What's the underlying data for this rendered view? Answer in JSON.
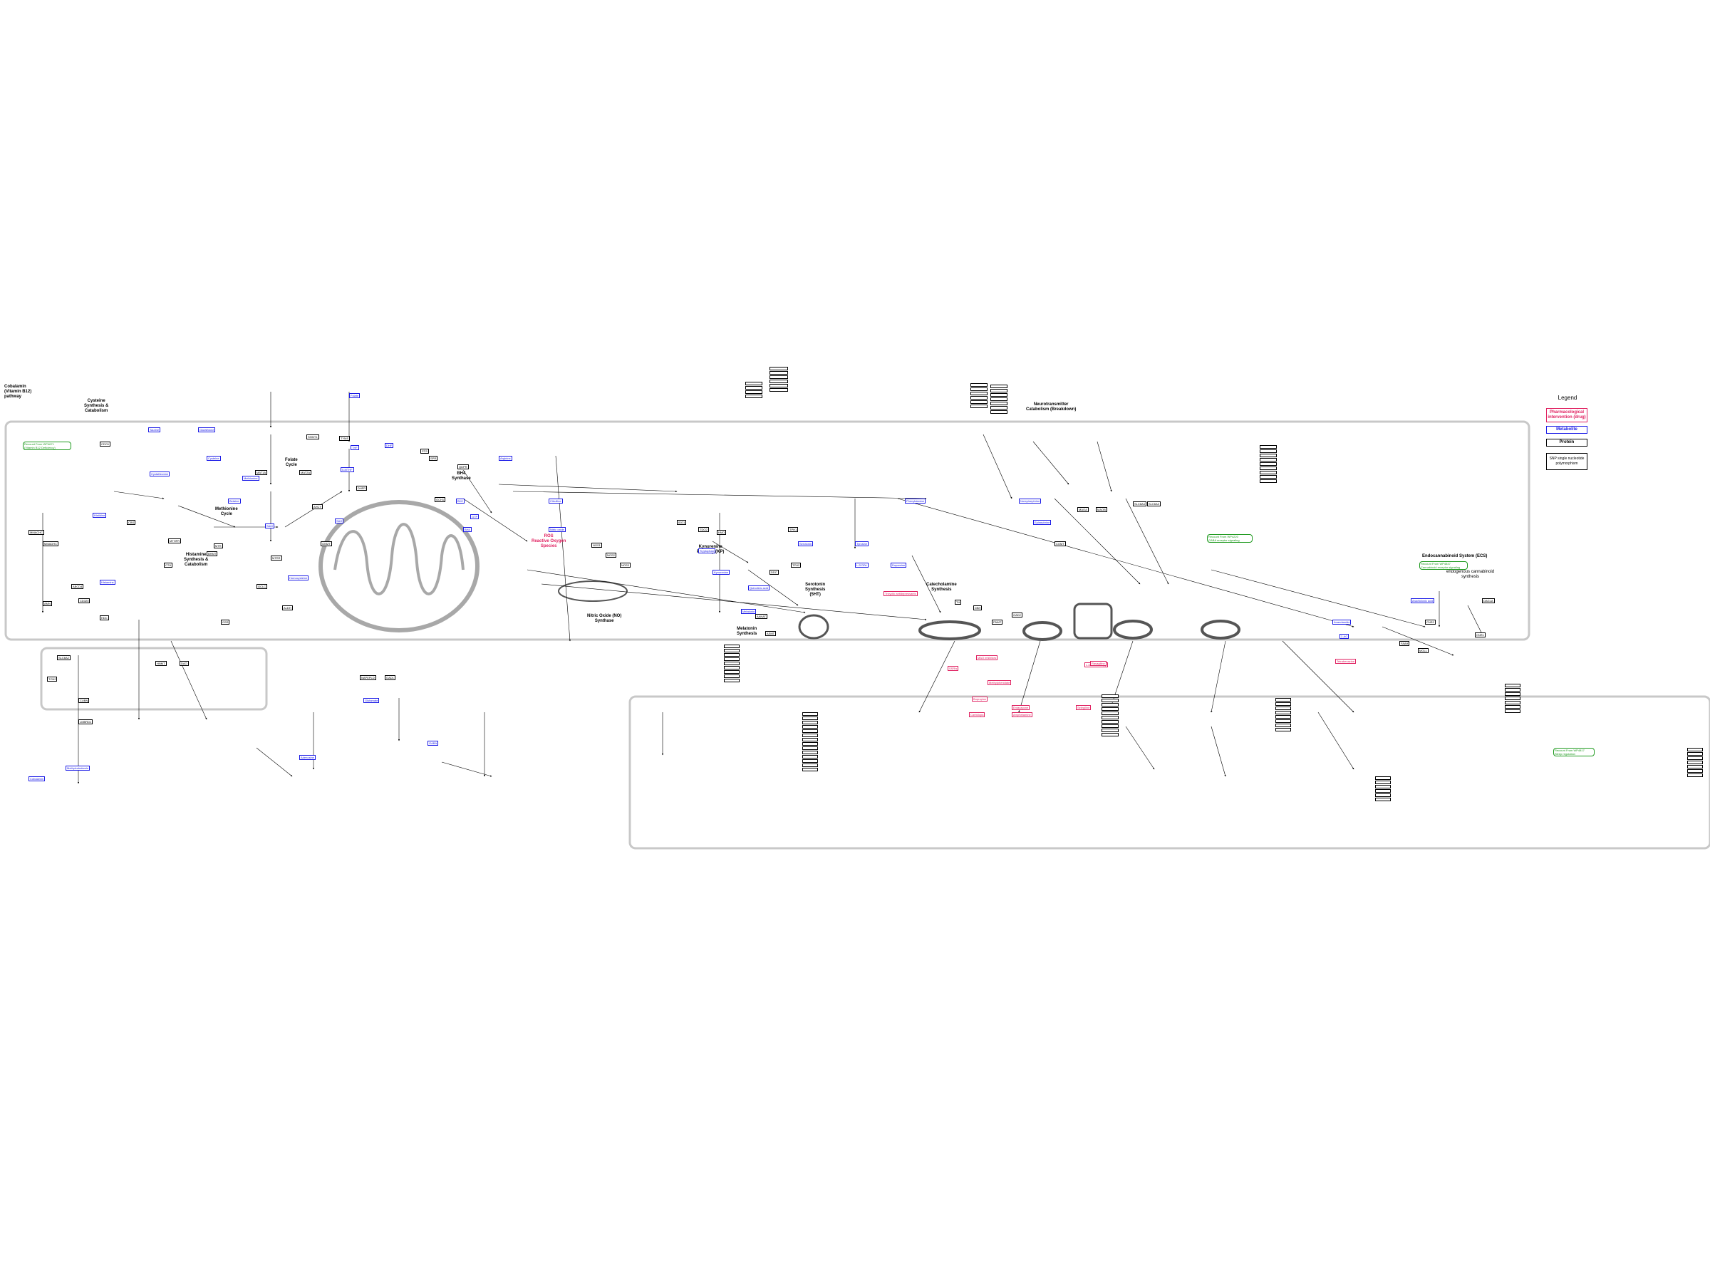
{
  "legend": {
    "title": "Legend",
    "items": [
      {
        "label": "Pharmacological intervention (drug)",
        "color": "#e02060"
      },
      {
        "label": "Metabolite",
        "color": "#1a1ae6"
      },
      {
        "label": "Protein",
        "color": "#000000"
      },
      {
        "label": "SNP single nucleotide polymorphism",
        "color": "#000000"
      }
    ]
  },
  "section_labels": {
    "cobalamin": "Cobalamin\n(Vitamin B12)\npathway",
    "cysteine": "Cysteine\nSynthesis &\nCatabolism",
    "folate": "Folate\nCycle",
    "bh4": "BH4\nSynthase",
    "methionine": "Methionine\nCycle",
    "histamine": "Histamine\nSynthesis &\nCatabolism",
    "kynurenine": "Kynurenine\nPathway (KP)",
    "nitric_oxide": "Nitric Oxide (NO)\nSynthase",
    "melatonin": "Melatonin\nSynthesis",
    "serotonin": "Serotonin\nSynthesis\n(5HT)",
    "catecholamine": "Catecholamine\nSynthesis",
    "neuro_catabolism": "Neurotransmitter\nCatabolism (Breakdown)",
    "endocannabinoid": "Endocannabinoid System (ECS)",
    "endo_synthesis": "endogenous cannabinoid\nsynthesis",
    "ros": "ROS\nReactive Oxygen\nSpecies"
  },
  "green_notes": {
    "left": "Recount From WP4671\n(Vitamin B12 Deficiency)",
    "mid": "Recount From WP4220\nGABA receptor signaling",
    "right_top": "Recount From WP4847\nCannabinoid receptor signaling",
    "right_bottom": "Recount From WP4817\nSleep regulation"
  },
  "nodes": {
    "metabolites": [
      "SAM",
      "SAH",
      "Homocysteine",
      "Methionine",
      "THF",
      "5-MTHF",
      "Folate",
      "DHF",
      "Cystathionine",
      "Cysteine",
      "Glutathione",
      "Taurine",
      "Histidine",
      "Histamine",
      "GTP",
      "BH4",
      "BH2",
      "Tryptophan",
      "Kynurenine",
      "Quinolinic acid",
      "Serotonin",
      "Melatonin",
      "Tyrosine",
      "L-DOPA",
      "Dopamine",
      "Norepinephrine",
      "Epinephrine",
      "Phenylalanine",
      "Arginine",
      "Citrulline",
      "Nitric oxide",
      "Anandamide",
      "2-AG",
      "Arachidonic acid",
      "Glutamate",
      "GABA",
      "Cobalamin",
      "Methylcobalamin",
      "Adenosine",
      "Betaine"
    ],
    "proteins": [
      "MTHFR",
      "MTR",
      "MTRR",
      "CBS",
      "CTH",
      "BHMT",
      "GNMT",
      "AHCY",
      "MAT1A",
      "MAT2A",
      "DHFR",
      "SHMT1",
      "TYMS",
      "GCH1",
      "PTS",
      "SPR",
      "QDPR",
      "HDC",
      "HNMT",
      "DAO",
      "TPH1",
      "TPH2",
      "DDC",
      "AANAT",
      "ASMT",
      "TH",
      "DBH",
      "PNMT",
      "COMT",
      "MAOA",
      "MAOB",
      "IDO1",
      "TDO2",
      "KMO",
      "NOS1",
      "NOS2",
      "NOS3",
      "FAAH",
      "MGLL",
      "CNR1",
      "CNR2",
      "DAGLA",
      "NAPEPLD",
      "GAD1",
      "GAD2",
      "SLC6A4",
      "SLC6A3",
      "SLC6A2",
      "TCN2",
      "CUBN",
      "LMBRD1",
      "MMACHC",
      "MMADHC",
      "ABCD4",
      "AMN",
      "CD320",
      "CDO1",
      "GSS",
      "GCLC",
      "ALDH"
    ],
    "drugs": [
      "SSRIs",
      "MAO inhibitors",
      "Methylphenidate",
      "Bupropion",
      "Amphetamine",
      "Tricyclic antidepressants",
      "L-DOPA therapy",
      "Carbidopa",
      "Entacapone",
      "Rasagiline",
      "Selegiline",
      "Tetrabenazine"
    ]
  },
  "colors": {
    "metabolite": "#1a1ae6",
    "protein": "#000000",
    "drug": "#e02060",
    "note": "#1e9a1e",
    "frame": "#c8c8c8",
    "mito": "#a0a0a0"
  }
}
